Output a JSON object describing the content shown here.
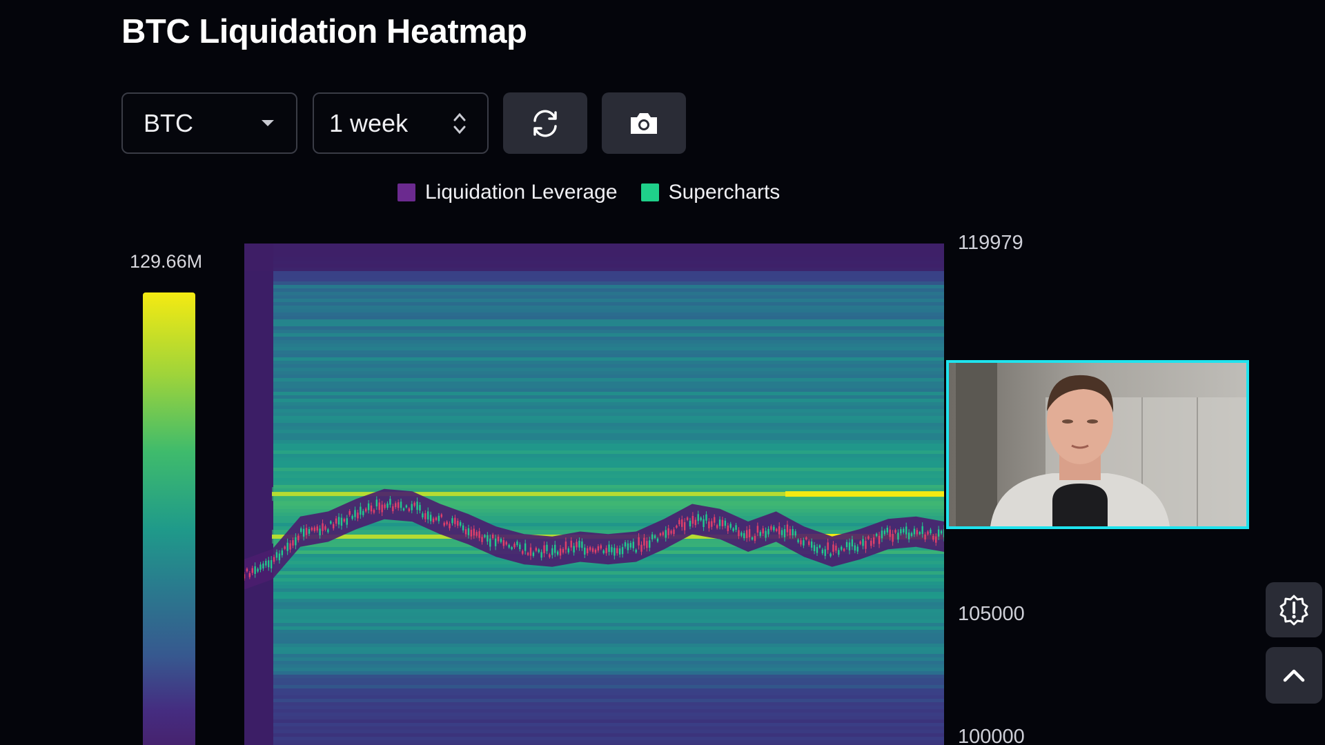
{
  "header": {
    "title": "BTC Liquidation Heatmap"
  },
  "controls": {
    "symbol_select": {
      "value": "BTC",
      "icon": "caret-down-icon"
    },
    "range_select": {
      "value": "1 week",
      "icon": "up-down-arrows-icon"
    },
    "refresh_button": {
      "icon": "refresh-icon"
    },
    "snapshot_button": {
      "icon": "camera-icon"
    }
  },
  "legend": [
    {
      "label": "Liquidation Leverage",
      "color": "#6b2a8f"
    },
    {
      "label": "Supercharts",
      "color": "#1fd08a"
    }
  ],
  "color_scale": {
    "max_label": "129.66M"
  },
  "chart_data": {
    "type": "heatmap",
    "title": "",
    "y_ticks": [
      "119979",
      "105000",
      "100000"
    ],
    "colorbar_max": "129.66M",
    "colors": {
      "low": "#46226d",
      "mid": "#1f9a8a",
      "high": "#f4ea12",
      "candle_up": "#22c98e",
      "candle_down": "#e0406a"
    },
    "bright_bands_price": [
      110000,
      108300
    ],
    "price_series_approx": [
      106800,
      107200,
      108500,
      108700,
      109200,
      109600,
      109500,
      109000,
      108600,
      108100,
      107800,
      107700,
      107900,
      107800,
      107900,
      108400,
      109000,
      108800,
      108300,
      108700,
      108100,
      107700,
      108000,
      108400,
      108500,
      108300
    ]
  },
  "sidebar_buttons": [
    {
      "icon": "alert-badge-icon"
    },
    {
      "icon": "chevron-up-icon"
    }
  ]
}
